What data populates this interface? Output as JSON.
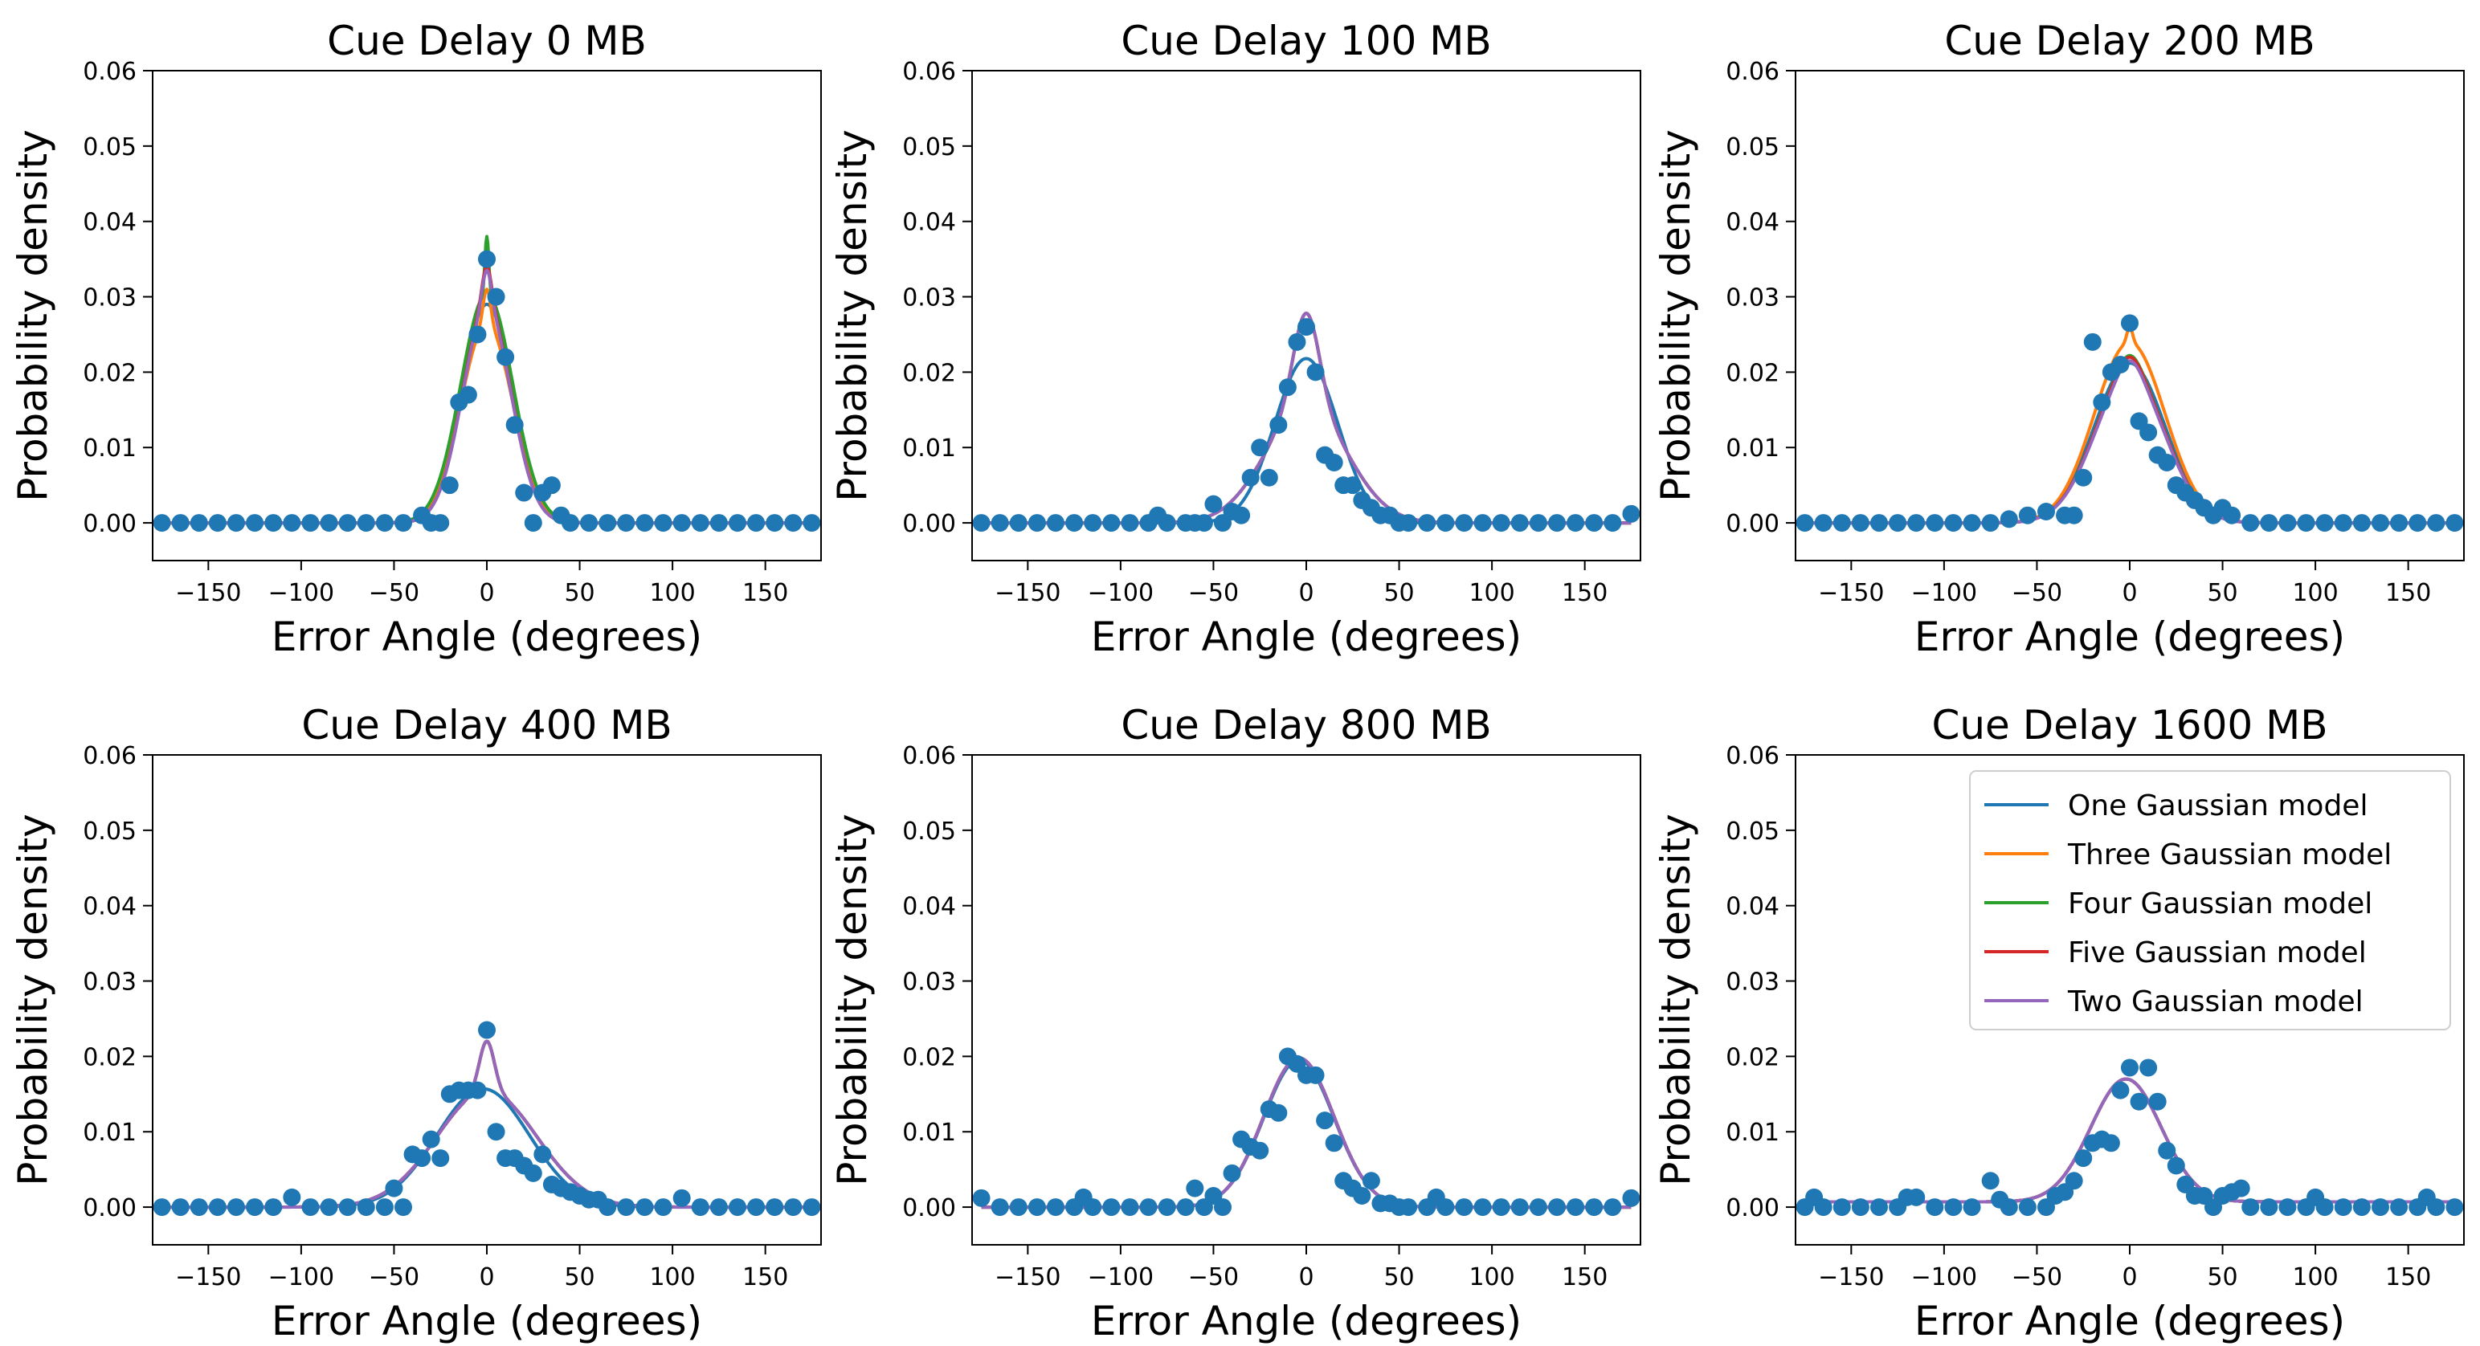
{
  "figure": {
    "xlabel": "Error Angle (degrees)",
    "ylabel": "Probability density",
    "x_ticks": [
      -150,
      -100,
      -50,
      0,
      50,
      100,
      150
    ],
    "y_ticks": [
      0.0,
      0.01,
      0.02,
      0.03,
      0.04,
      0.05,
      0.06
    ],
    "xlim": [
      -180,
      180
    ],
    "ylim": [
      -0.005,
      0.06
    ]
  },
  "legend": [
    {
      "name": "One Gaussian model",
      "color": "#1f77b4"
    },
    {
      "name": "Three Gaussian model",
      "color": "#ff7f0e"
    },
    {
      "name": "Four Gaussian model",
      "color": "#2ca02c"
    },
    {
      "name": "Five Gaussian model",
      "color": "#d62728"
    },
    {
      "name": "Two Gaussian model",
      "color": "#9467bd"
    }
  ],
  "point_color": "#1f77b4",
  "chart_data": [
    {
      "type": "scatter",
      "title": "Cue Delay 0 MB",
      "xlabel": "Error Angle (degrees)",
      "ylabel": "Probability density",
      "xlim": [
        -180,
        180
      ],
      "ylim": [
        -0.005,
        0.06
      ],
      "points_x": [
        -35,
        -30,
        -20,
        -15,
        -10,
        -5,
        0,
        5,
        10,
        15,
        20,
        30,
        35,
        40
      ],
      "points_y": [
        0.001,
        0.0,
        0.005,
        0.016,
        0.017,
        0.025,
        0.035,
        0.03,
        0.022,
        0.013,
        0.004,
        0.004,
        0.005,
        0.001
      ],
      "fits": [
        {
          "name": "One Gaussian model",
          "color": "#1f77b4",
          "peak": 0.029,
          "components": [
            {
              "w": 1,
              "mu": 0,
              "sigma": 14
            }
          ]
        },
        {
          "name": "Three Gaussian model",
          "color": "#ff7f0e",
          "peak": 0.031,
          "components": [
            {
              "w": 0.15,
              "mu": 0,
              "sigma": 2
            },
            {
              "w": 0.85,
              "mu": 0,
              "sigma": 14
            }
          ]
        },
        {
          "name": "Four Gaussian model",
          "color": "#2ca02c",
          "peak": 0.038,
          "components": [
            {
              "w": 0.2,
              "mu": 0,
              "sigma": 1
            },
            {
              "w": 0.8,
              "mu": 0,
              "sigma": 14
            }
          ]
        },
        {
          "name": "Five Gaussian model",
          "color": "#d62728",
          "peak": 0.034,
          "components": [
            {
              "w": 0.15,
              "mu": 0,
              "sigma": 2.5
            },
            {
              "w": 0.85,
              "mu": 0,
              "sigma": 13
            }
          ]
        },
        {
          "name": "Two Gaussian model",
          "color": "#9467bd",
          "peak": 0.0335,
          "components": [
            {
              "w": 0.15,
              "mu": 0,
              "sigma": 2.5
            },
            {
              "w": 0.85,
              "mu": 0,
              "sigma": 13
            }
          ]
        }
      ]
    },
    {
      "type": "scatter",
      "title": "Cue Delay 100 MB",
      "xlabel": "Error Angle (degrees)",
      "ylabel": "Probability density",
      "xlim": [
        -180,
        180
      ],
      "ylim": [
        -0.005,
        0.06
      ],
      "points_x": [
        -80,
        -60,
        -50,
        -40,
        -35,
        -30,
        -25,
        -20,
        -15,
        -10,
        -5,
        0,
        5,
        10,
        15,
        20,
        25,
        30,
        35,
        40,
        45,
        50,
        175
      ],
      "points_y": [
        0.001,
        0.0,
        0.0025,
        0.0015,
        0.001,
        0.006,
        0.01,
        0.006,
        0.013,
        0.018,
        0.024,
        0.026,
        0.02,
        0.009,
        0.008,
        0.005,
        0.005,
        0.003,
        0.002,
        0.001,
        0.001,
        0.0,
        0.0012
      ],
      "fits": [
        {
          "name": "One Gaussian model",
          "color": "#1f77b4",
          "peak": 0.0218,
          "components": [
            {
              "w": 1,
              "mu": 0,
              "sigma": 17
            }
          ]
        },
        {
          "name": "Three Gaussian model",
          "color": "#ff7f0e",
          "peak": 0.0278,
          "components": [
            {
              "w": 0.45,
              "mu": 0,
              "sigma": 7
            },
            {
              "w": 0.55,
              "mu": 0,
              "sigma": 22
            }
          ]
        },
        {
          "name": "Four Gaussian model",
          "color": "#2ca02c",
          "peak": 0.0278,
          "components": [
            {
              "w": 0.45,
              "mu": 0,
              "sigma": 7
            },
            {
              "w": 0.55,
              "mu": 0,
              "sigma": 22
            }
          ]
        },
        {
          "name": "Five Gaussian model",
          "color": "#d62728",
          "peak": 0.0278,
          "components": [
            {
              "w": 0.45,
              "mu": 0,
              "sigma": 7
            },
            {
              "w": 0.55,
              "mu": 0,
              "sigma": 22
            }
          ]
        },
        {
          "name": "Two Gaussian model",
          "color": "#9467bd",
          "peak": 0.0278,
          "components": [
            {
              "w": 0.45,
              "mu": 0,
              "sigma": 7
            },
            {
              "w": 0.55,
              "mu": 0,
              "sigma": 22
            }
          ]
        }
      ]
    },
    {
      "type": "scatter",
      "title": "Cue Delay 200 MB",
      "xlabel": "Error Angle (degrees)",
      "ylabel": "Probability density",
      "xlim": [
        -180,
        180
      ],
      "ylim": [
        -0.005,
        0.06
      ],
      "points_x": [
        -65,
        -55,
        -45,
        -35,
        -30,
        -25,
        -20,
        -15,
        -10,
        -5,
        0,
        5,
        10,
        15,
        20,
        25,
        30,
        35,
        40,
        45,
        50,
        55
      ],
      "points_y": [
        0.0005,
        0.001,
        0.0015,
        0.001,
        0.001,
        0.006,
        0.024,
        0.016,
        0.02,
        0.021,
        0.0265,
        0.0135,
        0.012,
        0.009,
        0.008,
        0.005,
        0.004,
        0.003,
        0.002,
        0.001,
        0.002,
        0.001
      ],
      "fits": [
        {
          "name": "One Gaussian model",
          "color": "#1f77b4",
          "peak": 0.0212,
          "components": [
            {
              "w": 1,
              "mu": 0,
              "sigma": 19
            }
          ]
        },
        {
          "name": "Three Gaussian model",
          "color": "#ff7f0e",
          "peak": 0.026,
          "components": [
            {
              "w": 0.08,
              "mu": 0,
              "sigma": 1.5
            },
            {
              "w": 0.92,
              "mu": 0,
              "sigma": 19
            }
          ]
        },
        {
          "name": "Four Gaussian model",
          "color": "#2ca02c",
          "peak": 0.0222,
          "components": [
            {
              "w": 0.1,
              "mu": 0,
              "sigma": 6
            },
            {
              "w": 0.9,
              "mu": 0,
              "sigma": 19
            }
          ]
        },
        {
          "name": "Five Gaussian model",
          "color": "#d62728",
          "peak": 0.022,
          "components": [
            {
              "w": 0.1,
              "mu": 0,
              "sigma": 6
            },
            {
              "w": 0.9,
              "mu": 0,
              "sigma": 19
            }
          ]
        },
        {
          "name": "Two Gaussian model",
          "color": "#9467bd",
          "peak": 0.0215,
          "components": [
            {
              "w": 0.1,
              "mu": 0,
              "sigma": 6
            },
            {
              "w": 0.9,
              "mu": 0,
              "sigma": 19
            }
          ]
        }
      ]
    },
    {
      "type": "scatter",
      "title": "Cue Delay 400 MB",
      "xlabel": "Error Angle (degrees)",
      "ylabel": "Probability density",
      "xlim": [
        -180,
        180
      ],
      "ylim": [
        -0.005,
        0.06
      ],
      "points_x": [
        -105,
        -50,
        -40,
        -35,
        -30,
        -25,
        -20,
        -15,
        -10,
        -5,
        0,
        5,
        10,
        15,
        20,
        25,
        30,
        35,
        40,
        45,
        50,
        55,
        60,
        65,
        105
      ],
      "points_y": [
        0.0013,
        0.0025,
        0.007,
        0.0065,
        0.009,
        0.0065,
        0.015,
        0.0155,
        0.0155,
        0.0155,
        0.0235,
        0.01,
        0.0065,
        0.0065,
        0.0055,
        0.0045,
        0.007,
        0.003,
        0.0025,
        0.002,
        0.0015,
        0.001,
        0.001,
        0.0,
        0.0012
      ],
      "fits": [
        {
          "name": "One Gaussian model",
          "color": "#1f77b4",
          "peak": 0.0157,
          "components": [
            {
              "w": 1,
              "mu": -2,
              "sigma": 25
            }
          ]
        },
        {
          "name": "Three Gaussian model",
          "color": "#ff7f0e",
          "peak": 0.022,
          "components": [
            {
              "w": 0.3,
              "mu": 0,
              "sigma": 4
            },
            {
              "w": 0.7,
              "mu": 0,
              "sigma": 27
            }
          ]
        },
        {
          "name": "Four Gaussian model",
          "color": "#2ca02c",
          "peak": 0.022,
          "components": [
            {
              "w": 0.3,
              "mu": 0,
              "sigma": 4
            },
            {
              "w": 0.7,
              "mu": 0,
              "sigma": 27
            }
          ]
        },
        {
          "name": "Five Gaussian model",
          "color": "#d62728",
          "peak": 0.022,
          "components": [
            {
              "w": 0.3,
              "mu": 0,
              "sigma": 4
            },
            {
              "w": 0.7,
              "mu": 0,
              "sigma": 27
            }
          ]
        },
        {
          "name": "Two Gaussian model",
          "color": "#9467bd",
          "peak": 0.022,
          "components": [
            {
              "w": 0.3,
              "mu": 0,
              "sigma": 4
            },
            {
              "w": 0.7,
              "mu": 0,
              "sigma": 27
            }
          ]
        }
      ]
    },
    {
      "type": "scatter",
      "title": "Cue Delay 800 MB",
      "xlabel": "Error Angle (degrees)",
      "ylabel": "Probability density",
      "xlim": [
        -180,
        180
      ],
      "ylim": [
        -0.005,
        0.06
      ],
      "points_x": [
        -175,
        -120,
        -60,
        -55,
        -50,
        -40,
        -35,
        -30,
        -25,
        -20,
        -15,
        -10,
        -5,
        0,
        5,
        10,
        15,
        20,
        25,
        30,
        35,
        40,
        45,
        50,
        55,
        70,
        175
      ],
      "points_y": [
        0.0012,
        0.0013,
        0.0025,
        0.0,
        0.0015,
        0.0045,
        0.009,
        0.008,
        0.0075,
        0.013,
        0.0125,
        0.02,
        0.019,
        0.0175,
        0.0175,
        0.0115,
        0.0085,
        0.0035,
        0.0025,
        0.0015,
        0.0035,
        0.0005,
        0.0005,
        0.0,
        0.0,
        0.0013,
        0.0012
      ],
      "fits": [
        {
          "name": "One Gaussian model",
          "color": "#1f77b4",
          "peak": 0.0195,
          "components": [
            {
              "w": 1,
              "mu": -4,
              "sigma": 19
            }
          ]
        },
        {
          "name": "Three Gaussian model",
          "color": "#ff7f0e",
          "peak": 0.0198,
          "components": [
            {
              "w": 1,
              "mu": -4,
              "sigma": 19
            }
          ]
        },
        {
          "name": "Four Gaussian model",
          "color": "#2ca02c",
          "peak": 0.0198,
          "components": [
            {
              "w": 1,
              "mu": -4,
              "sigma": 19
            }
          ]
        },
        {
          "name": "Five Gaussian model",
          "color": "#d62728",
          "peak": 0.0198,
          "components": [
            {
              "w": 1,
              "mu": -4,
              "sigma": 19
            }
          ]
        },
        {
          "name": "Two Gaussian model",
          "color": "#9467bd",
          "peak": 0.0198,
          "components": [
            {
              "w": 1,
              "mu": -4,
              "sigma": 19
            }
          ]
        }
      ]
    },
    {
      "type": "scatter",
      "title": "Cue Delay 1600 MB",
      "xlabel": "Error Angle (degrees)",
      "ylabel": "Probability density",
      "xlim": [
        -180,
        180
      ],
      "ylim": [
        -0.005,
        0.06
      ],
      "points_x": [
        -170,
        -155,
        -120,
        -115,
        -75,
        -70,
        -40,
        -35,
        -30,
        -25,
        -20,
        -15,
        -10,
        -5,
        0,
        5,
        10,
        15,
        20,
        25,
        30,
        35,
        40,
        50,
        55,
        60,
        65,
        100,
        160
      ],
      "points_y": [
        0.0013,
        0.0,
        0.0013,
        0.0013,
        0.0035,
        0.001,
        0.0015,
        0.002,
        0.0035,
        0.0065,
        0.0085,
        0.009,
        0.0085,
        0.0155,
        0.0185,
        0.014,
        0.0185,
        0.014,
        0.0075,
        0.0055,
        0.003,
        0.0015,
        0.0015,
        0.0015,
        0.002,
        0.0025,
        0.0,
        0.0013,
        0.0013
      ],
      "fits": [
        {
          "name": "One Gaussian model",
          "color": "#1f77b4",
          "peak": 0.017,
          "components": [
            {
              "w": 1,
              "mu": -2,
              "sigma": 19
            }
          ]
        },
        {
          "name": "Three Gaussian model",
          "color": "#ff7f0e",
          "peak": 0.017,
          "components": [
            {
              "w": 1,
              "mu": -2,
              "sigma": 19
            }
          ]
        },
        {
          "name": "Four Gaussian model",
          "color": "#2ca02c",
          "peak": 0.017,
          "components": [
            {
              "w": 1,
              "mu": -2,
              "sigma": 19
            }
          ]
        },
        {
          "name": "Five Gaussian model",
          "color": "#d62728",
          "peak": 0.017,
          "components": [
            {
              "w": 1,
              "mu": -2,
              "sigma": 19
            }
          ]
        },
        {
          "name": "Two Gaussian model",
          "color": "#9467bd",
          "peak": 0.017,
          "components": [
            {
              "w": 1,
              "mu": -2,
              "sigma": 19
            }
          ]
        }
      ],
      "baseline": 0.0007,
      "legend_position": "upper-right"
    }
  ]
}
